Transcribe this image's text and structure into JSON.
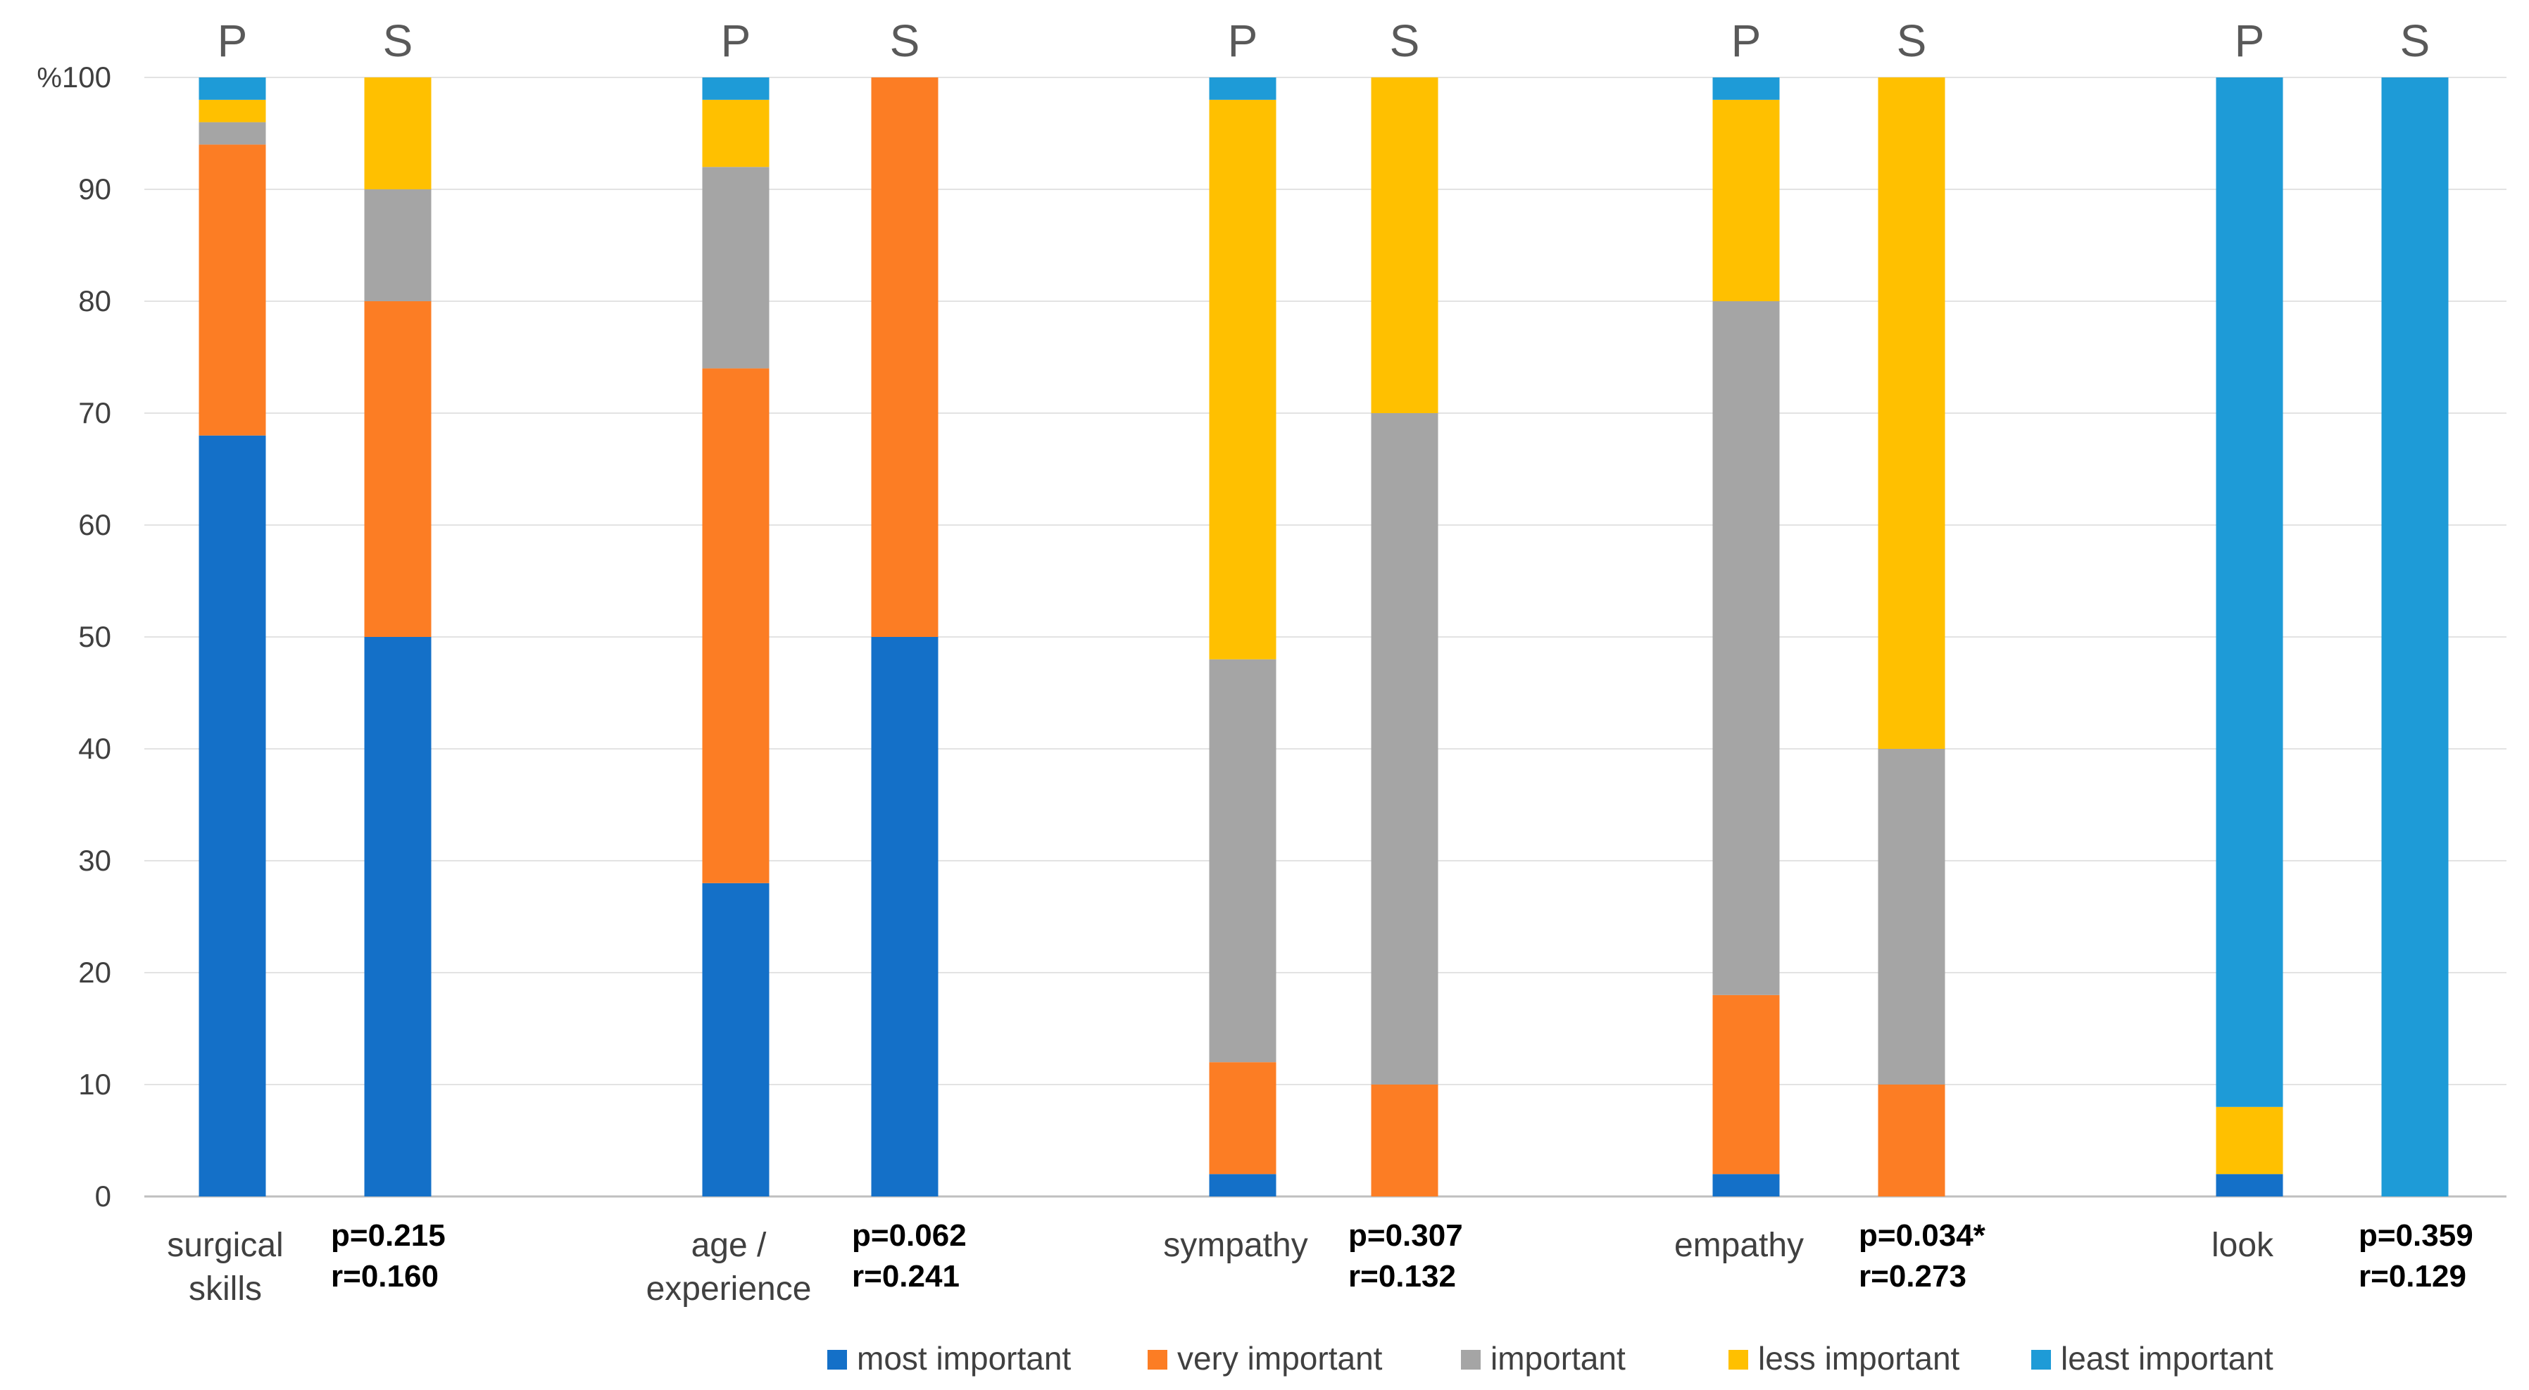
{
  "chart_data": {
    "type": "stacked-bar",
    "ylim": [
      0,
      100
    ],
    "y_ticks": [
      "0",
      "10",
      "20",
      "30",
      "40",
      "50",
      "60",
      "70",
      "80",
      "90",
      "100"
    ],
    "y_unit_label": "%",
    "stack_order": [
      "most important",
      "very important",
      "important",
      "less important",
      "least important"
    ],
    "legend": [
      {
        "name": "most important",
        "color": "#1470C8"
      },
      {
        "name": "very important",
        "color": "#FC7D24"
      },
      {
        "name": "important",
        "color": "#A5A5A5"
      },
      {
        "name": "less important",
        "color": "#FFC000"
      },
      {
        "name": "least important",
        "color": "#1E9BD7"
      }
    ],
    "groups": [
      {
        "label_lines": [
          "surgical",
          "skills"
        ],
        "stat_p": "p=0.215",
        "stat_r": "r=0.160",
        "bars": [
          {
            "label": "P",
            "values": [
              68,
              26,
              2,
              2,
              2
            ]
          },
          {
            "label": "S",
            "values": [
              50,
              30,
              10,
              10,
              0
            ]
          }
        ]
      },
      {
        "label_lines": [
          "age /",
          "experience"
        ],
        "stat_p": "p=0.062",
        "stat_r": "r=0.241",
        "bars": [
          {
            "label": "P",
            "values": [
              28,
              46,
              18,
              6,
              2
            ]
          },
          {
            "label": "S",
            "values": [
              50,
              50,
              0,
              0,
              0
            ]
          }
        ]
      },
      {
        "label_lines": [
          "sympathy"
        ],
        "stat_p": "p=0.307",
        "stat_r": "r=0.132",
        "bars": [
          {
            "label": "P",
            "values": [
              2,
              10,
              36,
              50,
              2
            ]
          },
          {
            "label": "S",
            "values": [
              0,
              10,
              60,
              30,
              0
            ]
          }
        ]
      },
      {
        "label_lines": [
          "empathy"
        ],
        "stat_p": "p=0.034*",
        "stat_r": "r=0.273",
        "bars": [
          {
            "label": "P",
            "values": [
              2,
              16,
              62,
              18,
              2
            ]
          },
          {
            "label": "S",
            "values": [
              0,
              10,
              30,
              60,
              0
            ]
          }
        ]
      },
      {
        "label_lines": [
          "look"
        ],
        "stat_p": "p=0.359",
        "stat_r": "r=0.129",
        "bars": [
          {
            "label": "P",
            "values": [
              2,
              0,
              0,
              6,
              92
            ]
          },
          {
            "label": "S",
            "values": [
              0,
              0,
              0,
              0,
              100
            ]
          }
        ]
      }
    ]
  }
}
